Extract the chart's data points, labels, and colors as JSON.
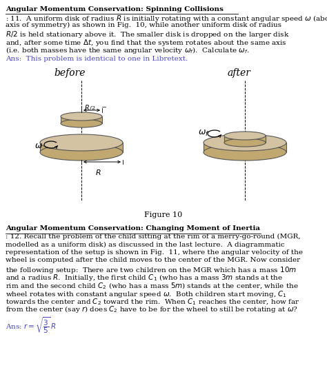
{
  "bg_color": "#ffffff",
  "blue_color": "#4444bb",
  "fig_width": 4.74,
  "fig_height": 5.69,
  "dpi": 100,
  "para1_bold": "Angular Momentum Conservation: Spinning Collisions",
  "para1_rest": ": 11.  A uniform disk of radius $R$ is initially rotating with a constant angular speed $\\omega$ (about its axis of symmetry) as shown in Fig.  10, while another uniform disk of radius $R/2$ is held stationary above it.  The smaller disk is dropped on the larger disk and, after some time $\\Delta t$, you find that the system rotates about the same axis (i.e. both masses have the same angular velocity $\\omega_f$).  Calculate $\\omega_f$.",
  "ans1": "Ans:  This problem is identical to one in Libretext.",
  "before_label": "before",
  "after_label": "after",
  "figure_label": "Figure 10",
  "para2_bold": "Angular Momentum Conservation: Changing Moment of Inertia",
  "para2_rest": ": 12. Recall the problem of the child sitting at the rim of a merry-go-round (MGR, modelled as a uniform disk) as discussed in the last lecture.  A diagrammatic representation of the setup is shown in Fig.  11, where the angular velocity of the wheel is computed after the child moves to the center of the MGR. Now consider the following setup:  There are two children on the MGR which has a mass $10m$ and a radius $R$.  Initially, the first child $C_1$ (who has a mass $3m$ stands at the rim and the second child $C_2$ (who has a mass $5m$) stands at the center, while the wheel rotates with constant angular speed $\\omega$.  Both children start moving, $C_1$ towards the center and $C_2$ toward the rim.  When $C_1$ reaches the center, how far from the center (say $r$) does $C_2$ have to be for the wheel to still be rotating at $\\omega$?",
  "ans2_prefix": "Ans: $r = $",
  "ans2": "Ans: $r = \\sqrt{\\dfrac{3}{5}}\\,R$",
  "disk_face_color": "#d4c3a3",
  "disk_side_color": "#c0a870",
  "disk_edge_color": "#555555"
}
